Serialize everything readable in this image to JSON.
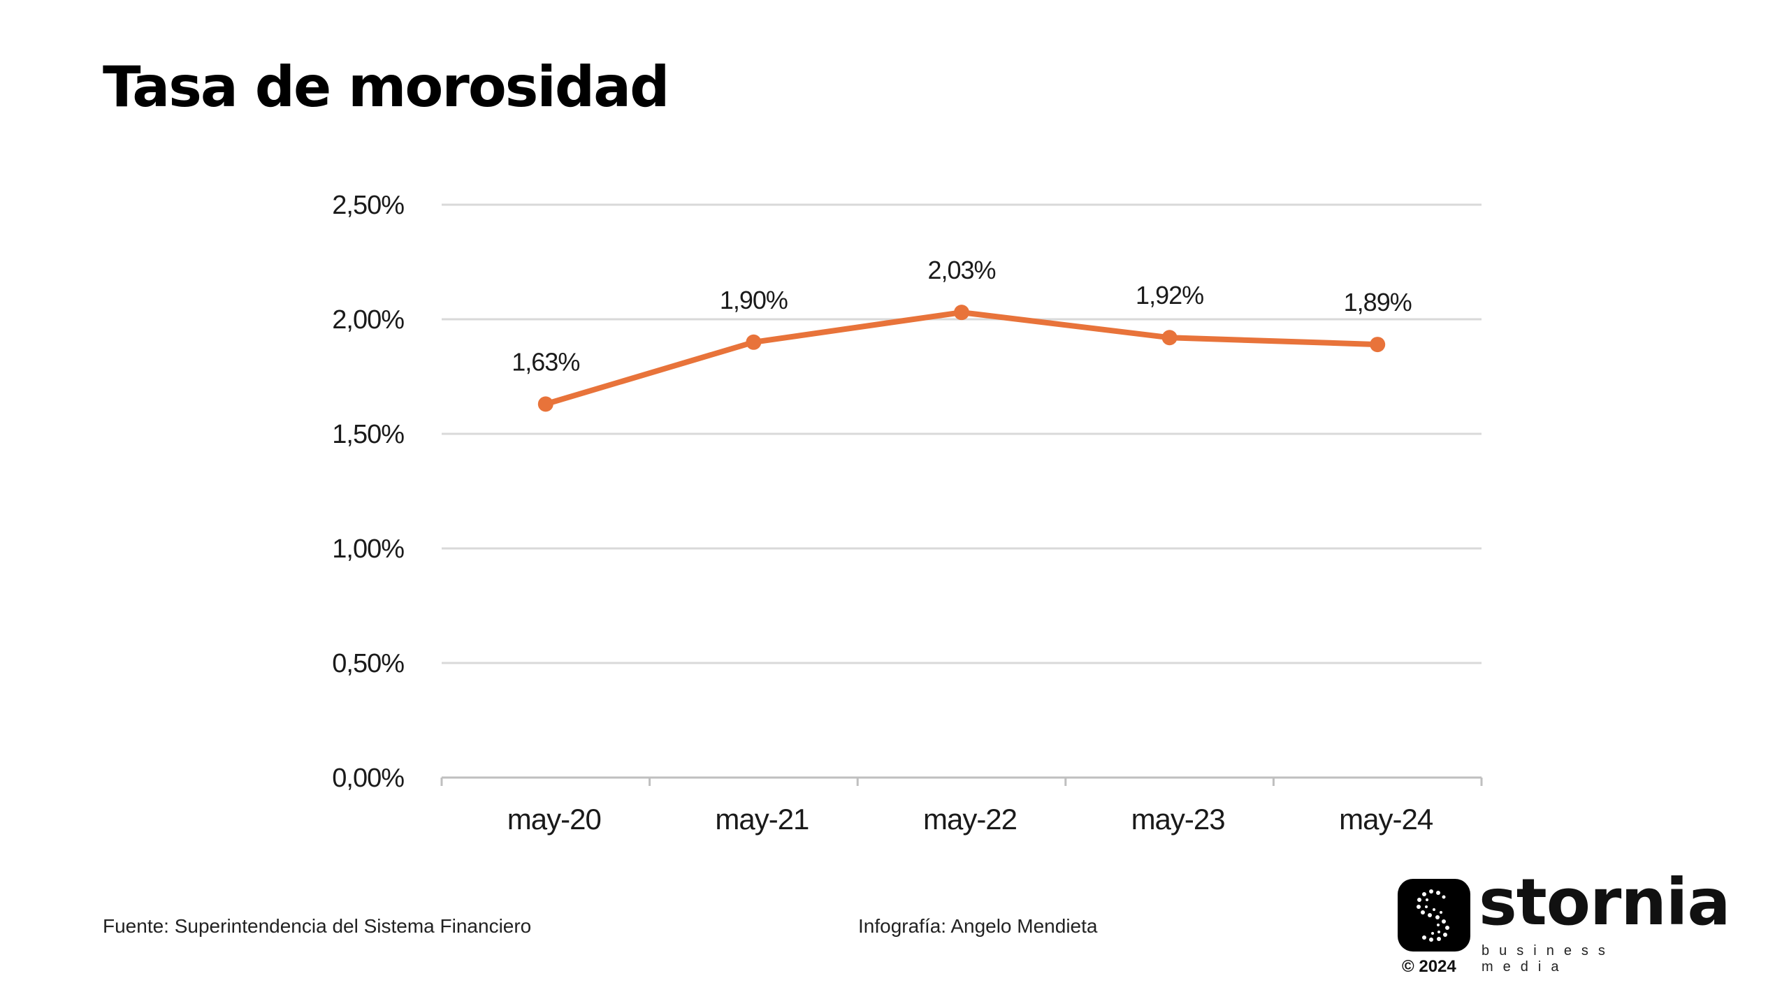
{
  "title": "Tasa de morosidad",
  "chart_data": {
    "type": "line",
    "title": "Tasa de morosidad",
    "xlabel": "",
    "ylabel": "",
    "categories": [
      "may-20",
      "may-21",
      "may-22",
      "may-23",
      "may-24"
    ],
    "series": [
      {
        "values": [
          1.63,
          1.9,
          2.03,
          1.92,
          1.89
        ]
      }
    ],
    "data_labels": [
      "1,63%",
      "1,90%",
      "2,03%",
      "1,92%",
      "1,89%"
    ],
    "yticks": [
      0,
      0.5,
      1.0,
      1.5,
      2.0,
      2.5
    ],
    "ytick_labels": [
      "0,00%",
      "0,50%",
      "1,00%",
      "1,50%",
      "2,00%",
      "2,50%"
    ],
    "ylim": [
      0,
      2.5
    ],
    "grid": true,
    "legend": "none",
    "colors": {
      "line": "#e8733a",
      "grid": "#d9d9d9",
      "axis": "#bfbfbf"
    }
  },
  "footer": {
    "source": "Fuente: Superintendencia del Sistema Financiero",
    "credit": "Infografía: Angelo Mendieta"
  },
  "logo": {
    "name": "stornia",
    "tagline": "business media",
    "copyright": "© 2024",
    "icon": "stornia-s-logo-icon"
  }
}
